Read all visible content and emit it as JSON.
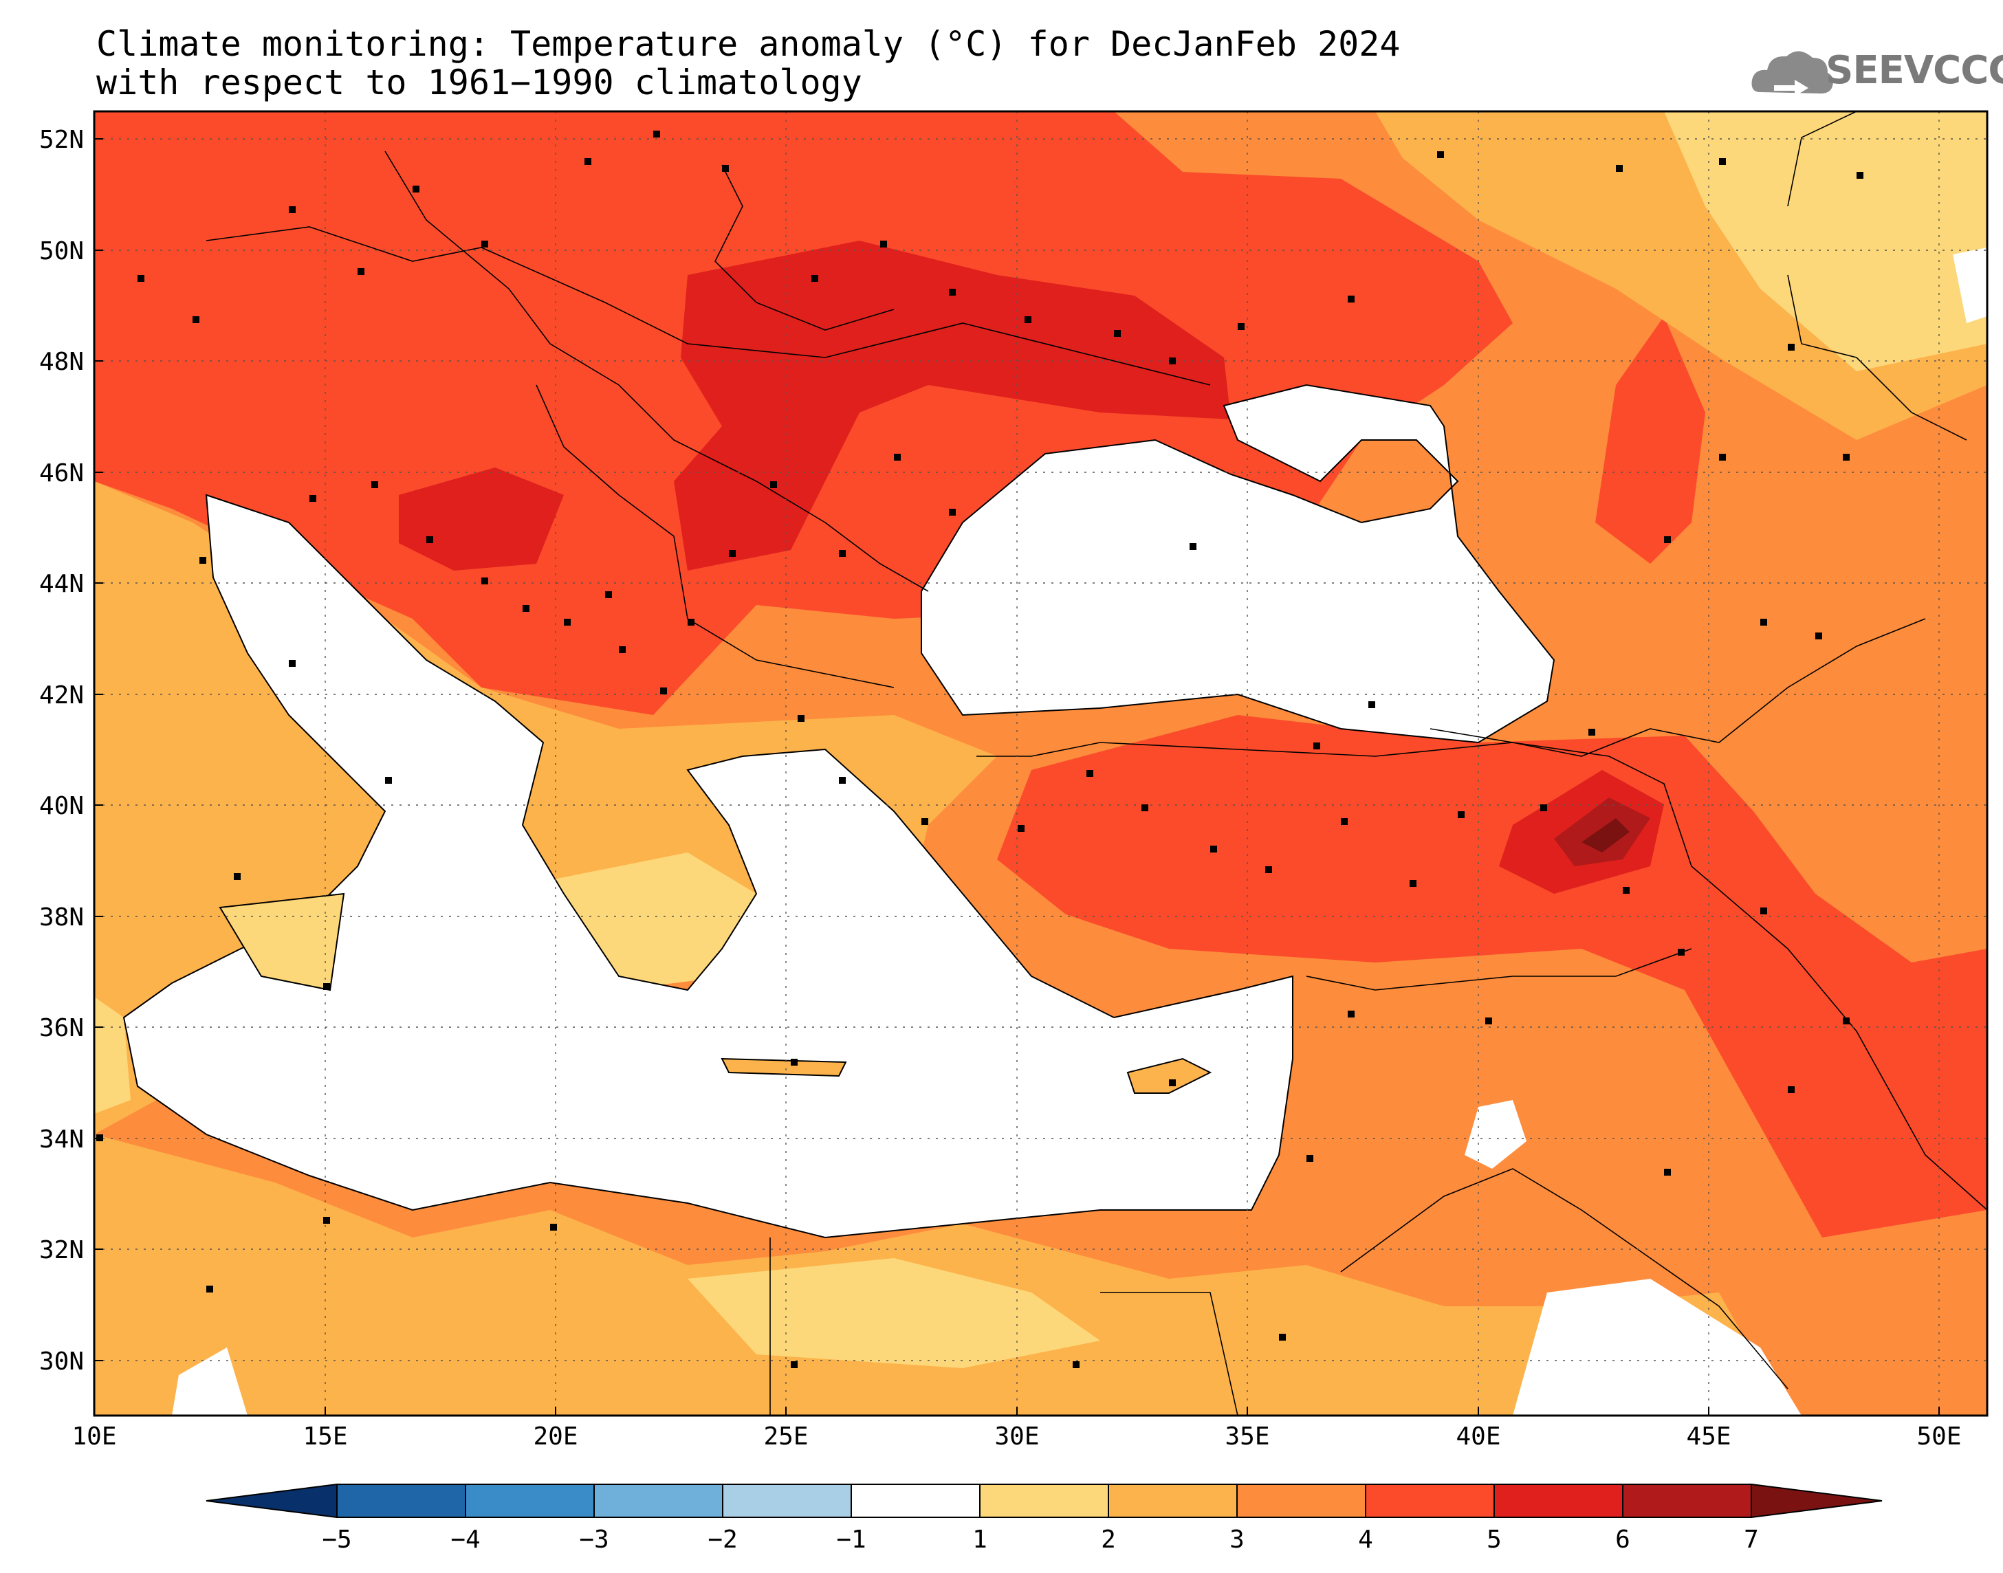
{
  "title": {
    "line1": "Climate monitoring: Temperature anomaly (°C) for DecJanFeb 2024",
    "line2": "with respect to 1961−1990 climatology"
  },
  "logo": {
    "text": "SEEVCCC",
    "icon": "cloud-logo-icon"
  },
  "map": {
    "lat_ticks": [
      "52N",
      "50N",
      "48N",
      "46N",
      "44N",
      "42N",
      "40N",
      "38N",
      "36N",
      "34N",
      "32N",
      "30N"
    ],
    "lon_ticks": [
      "10E",
      "15E",
      "20E",
      "25E",
      "30E",
      "35E",
      "40E",
      "45E",
      "50E"
    ],
    "lat_range": [
      29,
      52.5
    ],
    "lon_range": [
      10,
      51
    ]
  },
  "colorbar": {
    "labels": [
      "−5",
      "−4",
      "−3",
      "−2",
      "−1",
      "1",
      "2",
      "3",
      "4",
      "5",
      "6",
      "7"
    ],
    "colors": [
      "#08306b",
      "#1f66a8",
      "#3a8cc9",
      "#6eb0d9",
      "#a8cfe6",
      "#ffffff",
      "#fdd87a",
      "#fdb34c",
      "#fd8c3c",
      "#fb4b2b",
      "#e0201c",
      "#b01a1a",
      "#7a1212"
    ]
  },
  "colors": {
    "sea": "#ffffff",
    "anom_1_2": "#fdd87a",
    "anom_2_3": "#fdb34c",
    "anom_3_4": "#fd8c3c",
    "anom_4_5": "#fb4b2b",
    "anom_5_6": "#e0201c",
    "anom_6_7": "#b01a1a",
    "anom_gt7": "#7a1212"
  }
}
